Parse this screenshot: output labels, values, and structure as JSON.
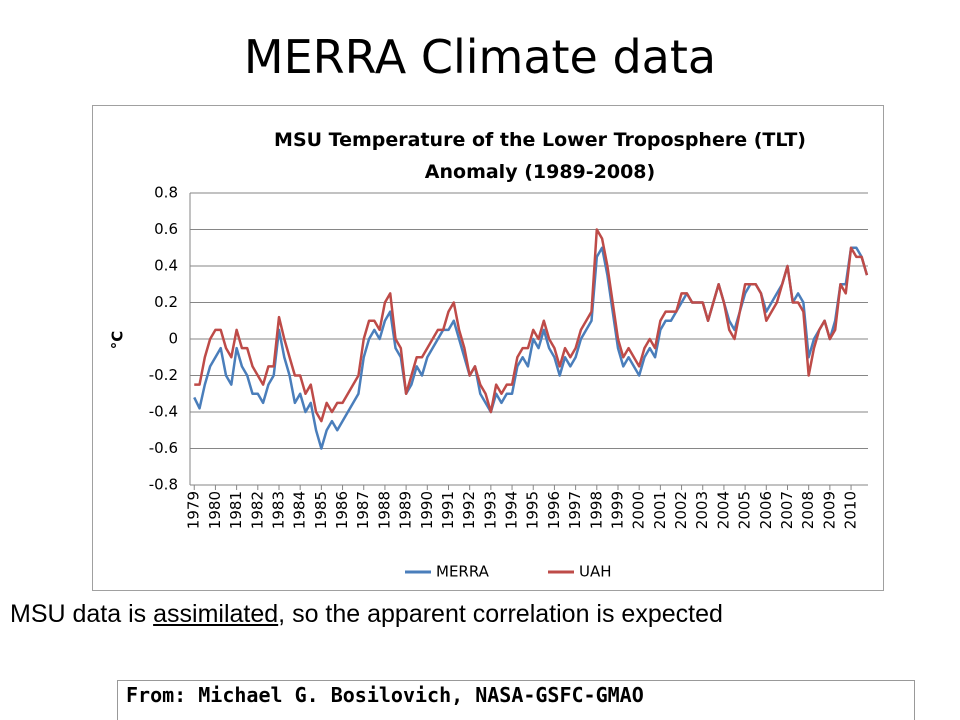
{
  "slide_title": "MERRA Climate data",
  "chart_data": {
    "type": "line",
    "title": "MSU Temperature of the Lower Troposphere (TLT) Anomaly (1989-2008)",
    "y_label": "°C",
    "x": [
      1979,
      1979.25,
      1979.5,
      1979.75,
      1980,
      1980.25,
      1980.5,
      1980.75,
      1981,
      1981.25,
      1981.5,
      1981.75,
      1982,
      1982.25,
      1982.5,
      1982.75,
      1983,
      1983.25,
      1983.5,
      1983.75,
      1984,
      1984.25,
      1984.5,
      1984.75,
      1985,
      1985.25,
      1985.5,
      1985.75,
      1986,
      1986.25,
      1986.5,
      1986.75,
      1987,
      1987.25,
      1987.5,
      1987.75,
      1988,
      1988.25,
      1988.5,
      1988.75,
      1989,
      1989.25,
      1989.5,
      1989.75,
      1990,
      1990.25,
      1990.5,
      1990.75,
      1991,
      1991.25,
      1991.5,
      1991.75,
      1992,
      1992.25,
      1992.5,
      1992.75,
      1993,
      1993.25,
      1993.5,
      1993.75,
      1994,
      1994.25,
      1994.5,
      1994.75,
      1995,
      1995.25,
      1995.5,
      1995.75,
      1996,
      1996.25,
      1996.5,
      1996.75,
      1997,
      1997.25,
      1997.5,
      1997.75,
      1998,
      1998.25,
      1998.5,
      1998.75,
      1999,
      1999.25,
      1999.5,
      1999.75,
      2000,
      2000.25,
      2000.5,
      2000.75,
      2001,
      2001.25,
      2001.5,
      2001.75,
      2002,
      2002.25,
      2002.5,
      2002.75,
      2003,
      2003.25,
      2003.5,
      2003.75,
      2004,
      2004.25,
      2004.5,
      2004.75,
      2005,
      2005.25,
      2005.5,
      2005.75,
      2006,
      2006.25,
      2006.5,
      2006.75,
      2007,
      2007.25,
      2007.5,
      2007.75,
      2008,
      2008.25,
      2008.5,
      2008.75,
      2009,
      2009.25,
      2009.5,
      2009.75,
      2010,
      2010.25,
      2010.5,
      2010.75
    ],
    "series": [
      {
        "name": "MERRA",
        "color": "#4a7ebb",
        "values": [
          -0.32,
          -0.38,
          -0.25,
          -0.15,
          -0.1,
          -0.05,
          -0.2,
          -0.25,
          -0.05,
          -0.15,
          -0.2,
          -0.3,
          -0.3,
          -0.35,
          -0.25,
          -0.2,
          0.05,
          -0.1,
          -0.2,
          -0.35,
          -0.3,
          -0.4,
          -0.35,
          -0.5,
          -0.6,
          -0.5,
          -0.45,
          -0.5,
          -0.45,
          -0.4,
          -0.35,
          -0.3,
          -0.1,
          0.0,
          0.05,
          0.0,
          0.1,
          0.15,
          -0.05,
          -0.1,
          -0.3,
          -0.25,
          -0.15,
          -0.2,
          -0.1,
          -0.05,
          0.0,
          0.05,
          0.05,
          0.1,
          0.0,
          -0.1,
          -0.2,
          -0.15,
          -0.3,
          -0.35,
          -0.4,
          -0.3,
          -0.35,
          -0.3,
          -0.3,
          -0.15,
          -0.1,
          -0.15,
          0.0,
          -0.05,
          0.05,
          -0.05,
          -0.1,
          -0.2,
          -0.1,
          -0.15,
          -0.1,
          0.0,
          0.05,
          0.1,
          0.45,
          0.5,
          0.35,
          0.15,
          -0.05,
          -0.15,
          -0.1,
          -0.15,
          -0.2,
          -0.1,
          -0.05,
          -0.1,
          0.05,
          0.1,
          0.1,
          0.15,
          0.2,
          0.25,
          0.2,
          0.2,
          0.2,
          0.1,
          0.2,
          0.3,
          0.2,
          0.1,
          0.05,
          0.15,
          0.25,
          0.3,
          0.3,
          0.25,
          0.15,
          0.2,
          0.25,
          0.3,
          0.4,
          0.2,
          0.25,
          0.2,
          -0.1,
          0.0,
          0.05,
          0.1,
          0.0,
          0.1,
          0.3,
          0.3,
          0.5,
          0.5,
          0.45,
          0.35
        ]
      },
      {
        "name": "UAH",
        "color": "#be4b48",
        "values": [
          -0.25,
          -0.25,
          -0.1,
          0.0,
          0.05,
          0.05,
          -0.05,
          -0.1,
          0.05,
          -0.05,
          -0.05,
          -0.15,
          -0.2,
          -0.25,
          -0.15,
          -0.15,
          0.12,
          0.0,
          -0.1,
          -0.2,
          -0.2,
          -0.3,
          -0.25,
          -0.4,
          -0.45,
          -0.35,
          -0.4,
          -0.35,
          -0.35,
          -0.3,
          -0.25,
          -0.2,
          0.0,
          0.1,
          0.1,
          0.05,
          0.2,
          0.25,
          0.0,
          -0.05,
          -0.3,
          -0.2,
          -0.1,
          -0.1,
          -0.05,
          0.0,
          0.05,
          0.05,
          0.15,
          0.2,
          0.05,
          -0.05,
          -0.2,
          -0.15,
          -0.25,
          -0.3,
          -0.4,
          -0.25,
          -0.3,
          -0.25,
          -0.25,
          -0.1,
          -0.05,
          -0.05,
          0.05,
          0.0,
          0.1,
          0.0,
          -0.05,
          -0.15,
          -0.05,
          -0.1,
          -0.05,
          0.05,
          0.1,
          0.15,
          0.6,
          0.55,
          0.4,
          0.2,
          0.0,
          -0.1,
          -0.05,
          -0.1,
          -0.15,
          -0.05,
          0.0,
          -0.05,
          0.1,
          0.15,
          0.15,
          0.15,
          0.25,
          0.25,
          0.2,
          0.2,
          0.2,
          0.1,
          0.2,
          0.3,
          0.2,
          0.05,
          0.0,
          0.15,
          0.3,
          0.3,
          0.3,
          0.25,
          0.1,
          0.15,
          0.2,
          0.3,
          0.4,
          0.2,
          0.2,
          0.15,
          -0.2,
          -0.05,
          0.05,
          0.1,
          0.0,
          0.05,
          0.3,
          0.25,
          0.5,
          0.45,
          0.45,
          0.35
        ]
      }
    ],
    "xlim": [
      1978.8,
      2010.8
    ],
    "xticks": [
      1979,
      1980,
      1981,
      1982,
      1983,
      1984,
      1985,
      1986,
      1987,
      1988,
      1989,
      1990,
      1991,
      1992,
      1993,
      1994,
      1995,
      1996,
      1997,
      1998,
      1999,
      2000,
      2001,
      2002,
      2003,
      2004,
      2005,
      2006,
      2007,
      2008,
      2009,
      2010
    ],
    "ylim": [
      -0.8,
      0.8
    ],
    "yticks": [
      0.8,
      0.6,
      0.4,
      0.2,
      0,
      -0.2,
      -0.4,
      -0.6,
      -0.8
    ],
    "grid": true,
    "legend": "bottom"
  },
  "caption": {
    "before": "MSU data is ",
    "underlined": "assimilated",
    "after": ", so the apparent correlation is expected"
  },
  "source": "From: Michael G. Bosilovich, NASA-GSFC-GMAO"
}
